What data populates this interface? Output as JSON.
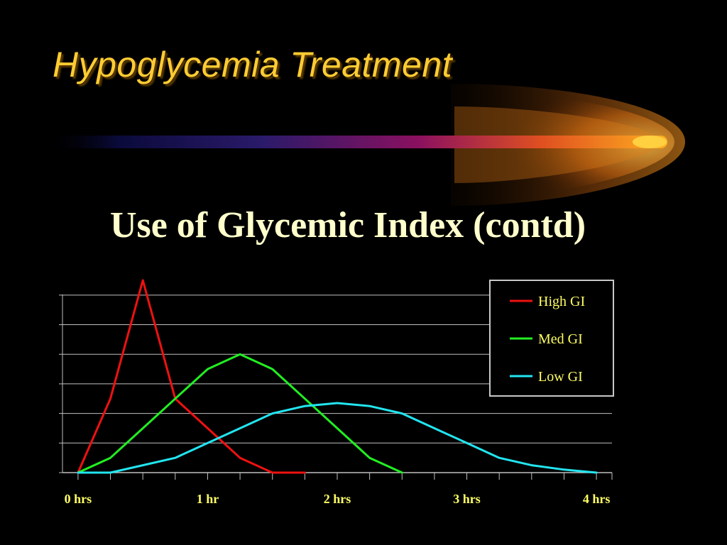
{
  "slide": {
    "title": "Hypoglycemia Treatment",
    "subtitle": "Use of Glycemic Index (contd)"
  },
  "colors": {
    "background": "#000000",
    "title": "#ffcc33",
    "subtitle": "#ffffcc",
    "tick_label": "#ffff66",
    "gridline": "#c0c0c0"
  },
  "chart_data": {
    "type": "line",
    "title": "",
    "xlabel": "",
    "ylabel": "",
    "x_unit": "hrs",
    "xlim": [
      -0.12,
      4.12
    ],
    "ylim": [
      0,
      6.5
    ],
    "grid": true,
    "legend_position": "top-right",
    "xtick_values": [
      0,
      1,
      2,
      3,
      4
    ],
    "xtick_labels": [
      "0 hrs",
      "1 hr",
      "2 hrs",
      "3 hrs",
      "4 hrs"
    ],
    "minor_tick_step": 0.25,
    "series": [
      {
        "name": "High GI",
        "color": "#ee1111",
        "x": [
          0,
          0.25,
          0.5,
          0.75,
          1.0,
          1.25,
          1.5,
          1.75
        ],
        "y": [
          0,
          2.5,
          6.5,
          2.5,
          1.5,
          0.5,
          0,
          0
        ]
      },
      {
        "name": "Med GI",
        "color": "#22ee22",
        "x": [
          0,
          0.25,
          0.5,
          0.75,
          1.0,
          1.25,
          1.5,
          1.75,
          2.0,
          2.25,
          2.5
        ],
        "y": [
          0,
          0.5,
          1.5,
          2.5,
          3.5,
          4.0,
          3.5,
          2.5,
          1.5,
          0.5,
          0
        ]
      },
      {
        "name": "Low GI",
        "color": "#22e5f0",
        "x": [
          0,
          0.25,
          0.5,
          0.75,
          1.0,
          1.25,
          1.5,
          1.75,
          2.0,
          2.25,
          2.5,
          2.75,
          3.0,
          3.25,
          3.5,
          3.75,
          4.0
        ],
        "y": [
          0,
          0,
          0.25,
          0.5,
          1.0,
          1.5,
          2.0,
          2.25,
          2.35,
          2.25,
          2.0,
          1.5,
          1.0,
          0.5,
          0.25,
          0.1,
          0
        ]
      }
    ]
  }
}
